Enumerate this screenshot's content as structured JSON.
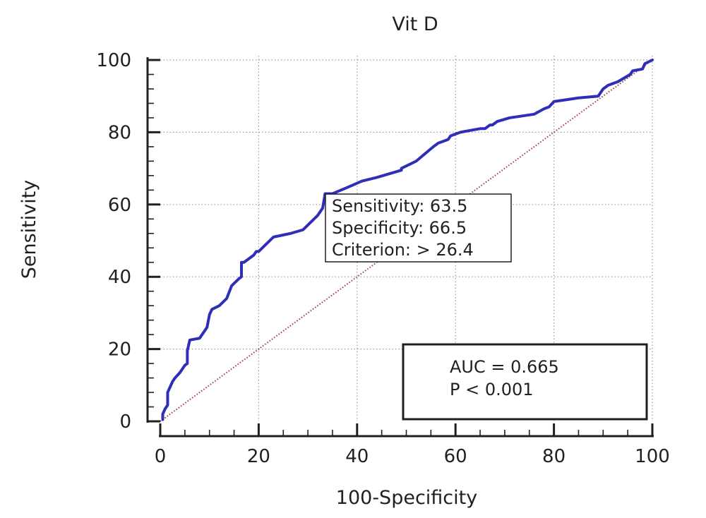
{
  "chart_data": {
    "type": "line",
    "title": "Vit D",
    "xlabel": "100-Specificity",
    "ylabel": "Sensitivity",
    "xlim": [
      0,
      100
    ],
    "ylim": [
      0,
      100
    ],
    "x_ticks": [
      0,
      20,
      40,
      60,
      80,
      100
    ],
    "y_ticks": [
      0,
      20,
      40,
      60,
      80,
      100
    ],
    "grid": true,
    "series": [
      {
        "color": "#2e2eb8",
        "x": [
          0.5,
          0.5,
          1.0,
          1.5,
          1.5,
          2.0,
          2.5,
          3.0,
          4.0,
          5.0,
          5.5,
          5.5,
          6.0,
          8.0,
          8.5,
          9.0,
          9.5,
          10.0,
          10.5,
          12.0,
          13.5,
          14.5,
          16.0,
          16.5,
          16.5,
          17.0,
          18.0,
          19.0,
          19.5,
          20.0,
          23.0,
          26.5,
          29.0,
          32.0,
          33.0,
          33.5,
          35.0,
          38.5,
          41.0,
          44.0,
          49.0,
          49.0,
          52.0,
          55.5,
          56.5,
          57.5,
          58.5,
          59.0,
          61.0,
          63.0,
          65.0,
          66.0,
          67.0,
          67.5,
          68.5,
          71.0,
          76.0,
          78.0,
          79.0,
          80.0,
          85.0,
          89.0,
          89.5,
          90.0,
          91.0,
          93.0,
          95.5,
          96.0,
          98.0,
          98.5,
          100.0
        ],
        "y": [
          0.5,
          2.0,
          3.5,
          4.5,
          8.0,
          9.5,
          11.0,
          12.0,
          13.5,
          15.5,
          16.0,
          19.5,
          22.5,
          23.0,
          24.0,
          25.0,
          26.0,
          29.5,
          31.0,
          32.0,
          34.0,
          37.5,
          39.5,
          40.0,
          44.0,
          44.0,
          45.0,
          46.0,
          47.0,
          47.0,
          51.0,
          52.0,
          53.0,
          57.0,
          59.0,
          63.0,
          63.0,
          65.0,
          66.5,
          67.5,
          69.5,
          70.0,
          72.0,
          76.0,
          77.0,
          77.5,
          78.0,
          79.0,
          80.0,
          80.5,
          81.0,
          81.0,
          82.0,
          82.0,
          83.0,
          84.0,
          85.0,
          86.5,
          87.0,
          88.5,
          89.5,
          90.0,
          91.0,
          92.0,
          93.0,
          94.0,
          96.0,
          97.0,
          97.5,
          99.0,
          100.0
        ]
      },
      {
        "color": "#a33a3a",
        "style": "dotted",
        "x": [
          0,
          100
        ],
        "y": [
          0,
          100
        ]
      }
    ],
    "annotations": [
      {
        "text": [
          "Sensitivity: 63.5",
          "Specificity: 66.5",
          "Criterion: > 26.4"
        ]
      },
      {
        "text": [
          "AUC = 0.665",
          "P < 0.001"
        ]
      }
    ]
  }
}
